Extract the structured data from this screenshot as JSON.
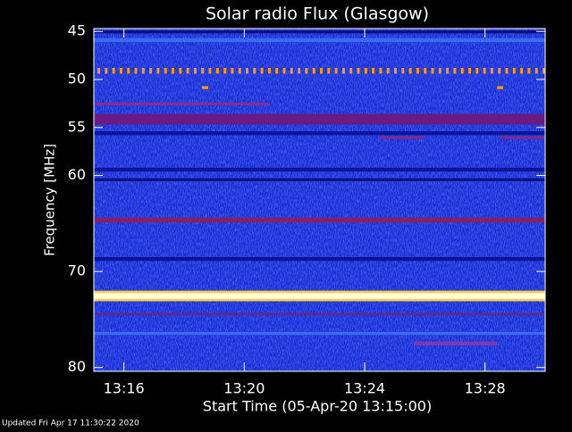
{
  "chart_data": {
    "type": "spectrogram",
    "title": "Solar radio Flux (Glasgow)",
    "x_label": "Start Time (05-Apr-20 13:15:00)",
    "y_label": "Frequency [MHz]",
    "footer": "Updated Fri Apr 17 11:30:22 2020",
    "xlim": [
      15,
      30
    ],
    "xticks": [
      {
        "value": 16,
        "label": "13:16"
      },
      {
        "value": 20,
        "label": "13:20"
      },
      {
        "value": 24,
        "label": "13:24"
      },
      {
        "value": 28,
        "label": "13:28"
      }
    ],
    "ylim": [
      44.7,
      80.4
    ],
    "yticks": [
      45,
      50,
      55,
      60,
      70,
      80
    ],
    "y_inverted": true,
    "background_color": "#1a30d8",
    "bands": [
      {
        "y": [
          44.9,
          45.2
        ],
        "x": [
          15,
          30
        ],
        "color": "#0a1080"
      },
      {
        "y": [
          45.7,
          46.1
        ],
        "x": [
          15,
          30
        ],
        "color": "#3a6af0"
      },
      {
        "y": [
          48.9,
          49.3
        ],
        "x": [
          15,
          30
        ],
        "color": "#ff9a00",
        "dashed": true
      },
      {
        "y": [
          50.7,
          51.0
        ],
        "x": [
          18.6,
          18.8
        ],
        "color": "#ff9a00"
      },
      {
        "y": [
          50.7,
          51.0
        ],
        "x": [
          28.4,
          28.6
        ],
        "color": "#ff9a00"
      },
      {
        "y": [
          52.4,
          52.7
        ],
        "x": [
          15,
          20.85
        ],
        "color": "#8a2a8a"
      },
      {
        "y": [
          53.6,
          54.7
        ],
        "x": [
          15,
          30
        ],
        "color": "#6a1a80"
      },
      {
        "y": [
          55.4,
          55.8
        ],
        "x": [
          15,
          30
        ],
        "color": "#0c1498"
      },
      {
        "y": [
          55.9,
          56.2
        ],
        "x": [
          24.5,
          26.0
        ],
        "color": "#7a2a90"
      },
      {
        "y": [
          55.9,
          56.2
        ],
        "x": [
          28.5,
          30
        ],
        "color": "#7a2a90"
      },
      {
        "y": [
          59.2,
          59.6
        ],
        "x": [
          15,
          30
        ],
        "color": "#0c1498"
      },
      {
        "y": [
          60.3,
          60.6
        ],
        "x": [
          15,
          30
        ],
        "color": "#0a1080"
      },
      {
        "y": [
          64.4,
          64.9
        ],
        "x": [
          15,
          30
        ],
        "color": "#8a2060"
      },
      {
        "y": [
          68.5,
          68.9
        ],
        "x": [
          15,
          30
        ],
        "color": "#0c1498"
      },
      {
        "y": [
          72.0,
          73.1
        ],
        "x": [
          15,
          30
        ],
        "color": "#ffd040"
      },
      {
        "y": [
          72.25,
          72.85
        ],
        "x": [
          15,
          30
        ],
        "color": "#ffffe0"
      },
      {
        "y": [
          74.3,
          74.6
        ],
        "x": [
          15,
          30
        ],
        "color": "#5a2a9a"
      },
      {
        "y": [
          76.3,
          76.6
        ],
        "x": [
          15,
          30
        ],
        "color": "#3a6af0"
      },
      {
        "y": [
          77.3,
          77.7
        ],
        "x": [
          25.65,
          28.4
        ],
        "color": "#7a3ab0"
      }
    ]
  }
}
